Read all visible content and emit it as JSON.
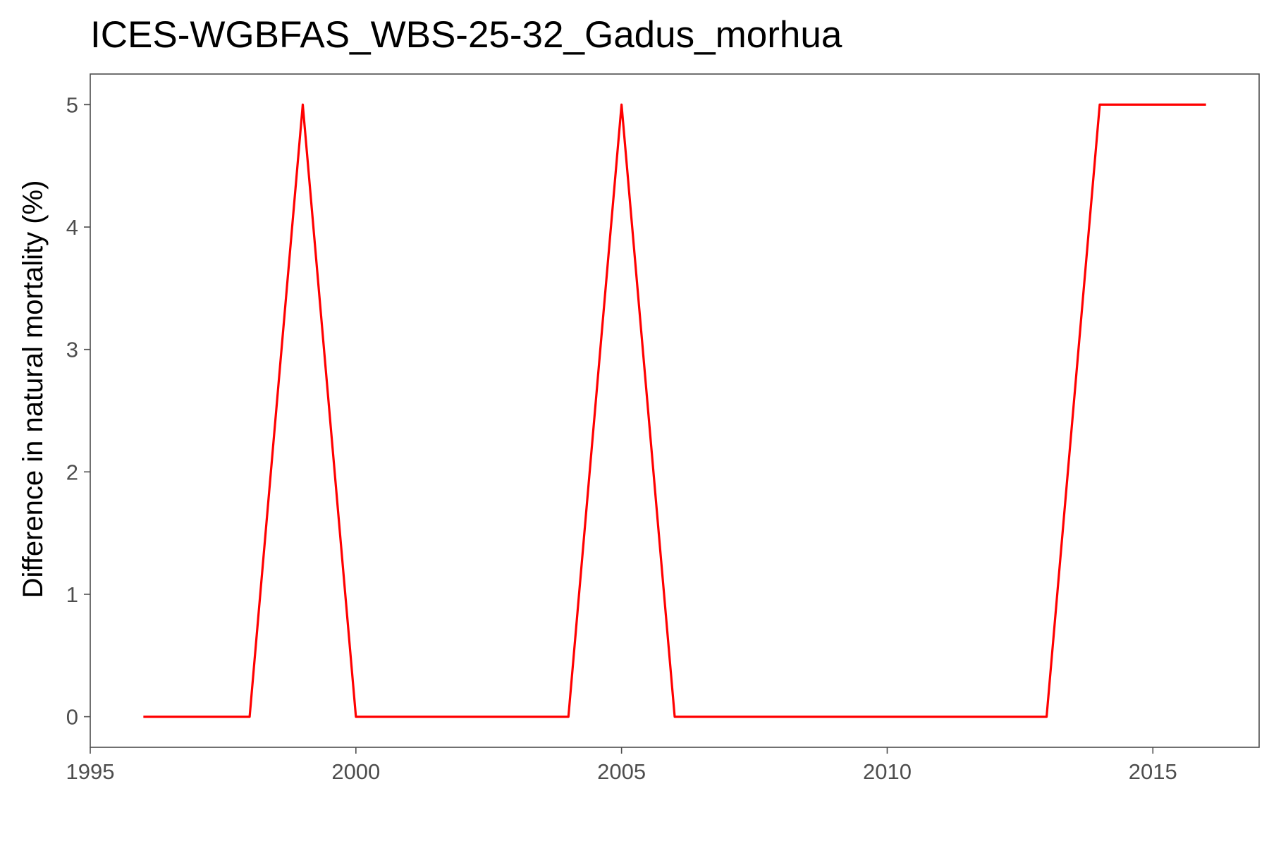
{
  "chart_data": {
    "type": "line",
    "title": "ICES-WGBFAS_WBS-25-32_Gadus_morhua",
    "xlabel": "",
    "ylabel": "Difference in natural mortality (%)",
    "xlim": [
      1995,
      2017
    ],
    "ylim": [
      -0.25,
      5.25
    ],
    "x_ticks": [
      1995,
      2000,
      2005,
      2010,
      2015
    ],
    "y_ticks": [
      0,
      1,
      2,
      3,
      4,
      5
    ],
    "grid": false,
    "series": [
      {
        "color": "#ff0000",
        "x": [
          1996,
          1997,
          1998,
          1999,
          2000,
          2001,
          2002,
          2003,
          2004,
          2005,
          2006,
          2007,
          2008,
          2009,
          2010,
          2011,
          2012,
          2013,
          2014,
          2015,
          2016
        ],
        "y": [
          0,
          0,
          0,
          5,
          0,
          0,
          0,
          0,
          0,
          5,
          0,
          0,
          0,
          0,
          0,
          0,
          0,
          0,
          5,
          5,
          5
        ]
      }
    ]
  }
}
